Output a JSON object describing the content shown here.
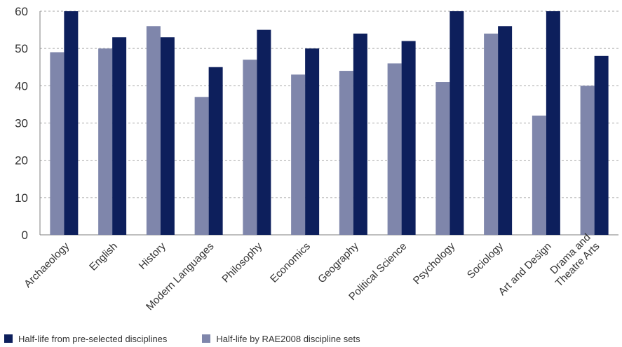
{
  "chart_data": {
    "type": "bar",
    "categories": [
      "Archaeology",
      "English",
      "History",
      "Modern Languages",
      "Philosophy",
      "Economics",
      "Geography",
      "Political Science",
      "Psychology",
      "Sociology",
      "Art and Design",
      "Drama and Theatre Arts"
    ],
    "category_lines": [
      [
        "Archaeology"
      ],
      [
        "English"
      ],
      [
        "History"
      ],
      [
        "Modern Languages"
      ],
      [
        "Philosophy"
      ],
      [
        "Economics"
      ],
      [
        "Geography"
      ],
      [
        "Political Science"
      ],
      [
        "Psychology"
      ],
      [
        "Sociology"
      ],
      [
        "Art and Design"
      ],
      [
        "Drama and",
        "Theatre Arts"
      ]
    ],
    "series": [
      {
        "name": "Half-life by RAE2008 discipline sets",
        "color": "#7f86ab",
        "values": [
          49,
          50,
          56,
          37,
          47,
          43,
          44,
          46,
          41,
          54,
          32,
          40
        ]
      },
      {
        "name": "Half-life from pre-selected disciplines",
        "color": "#0d1f5c",
        "values": [
          60,
          53,
          53,
          45,
          55,
          50,
          54,
          52,
          60,
          56,
          60,
          48
        ]
      }
    ],
    "legend_order": [
      1,
      0
    ],
    "ylim": [
      0,
      60
    ],
    "yticks": [
      "0",
      "10",
      "20",
      "30",
      "40",
      "50",
      "60"
    ],
    "grid": true,
    "grid_style": "dashed",
    "legend_position": "bottom-left",
    "title": "",
    "xlabel": "",
    "ylabel": ""
  }
}
